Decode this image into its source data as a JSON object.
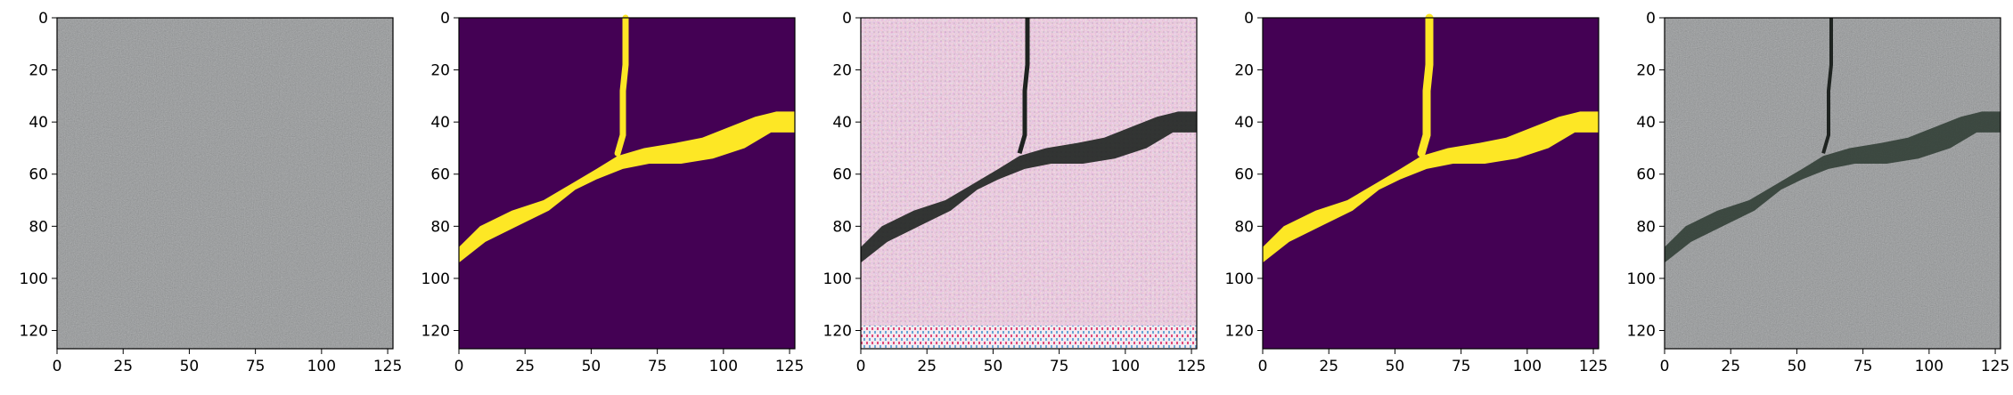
{
  "figure": {
    "panel_count": 5,
    "panels": [
      {
        "id": "input-concrete",
        "content": "concrete surface photo"
      },
      {
        "id": "ground-truth-mask",
        "content": "binary crack mask (viridis)"
      },
      {
        "id": "generated-crack",
        "content": "synthesized cracked texture"
      },
      {
        "id": "predicted-mask",
        "content": "smoothed crack mask (viridis)"
      },
      {
        "id": "composited-result",
        "content": "concrete with crack composited"
      }
    ],
    "colors": {
      "mask_background": "#440154",
      "mask_foreground": "#fde725",
      "concrete": "#8f9192",
      "crack": "#1e2320",
      "pink_texture": "#e9b4d2"
    }
  },
  "axes": {
    "x_ticks": [
      "0",
      "25",
      "50",
      "75",
      "100",
      "125"
    ],
    "y_ticks": [
      "0",
      "20",
      "40",
      "60",
      "80",
      "100",
      "120"
    ],
    "x_range": [
      0,
      127
    ],
    "y_range": [
      0,
      127
    ]
  }
}
